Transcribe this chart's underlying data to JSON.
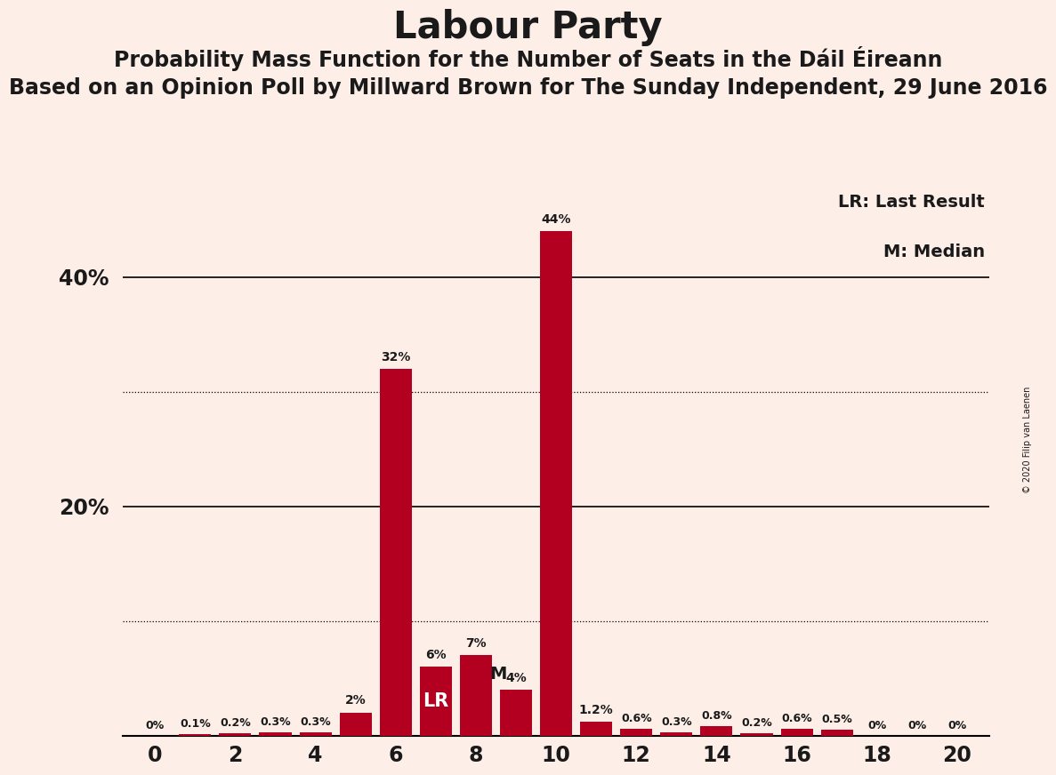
{
  "title": "Labour Party",
  "subtitle1": "Probability Mass Function for the Number of Seats in the Dáil Éireann",
  "subtitle2": "Based on an Opinion Poll by Millward Brown for The Sunday Independent, 29 June 2016",
  "copyright": "© 2020 Filip van Laenen",
  "legend1": "LR: Last Result",
  "legend2": "M: Median",
  "background_color": "#fdeee8",
  "bar_color": "#b30020",
  "seats": [
    0,
    1,
    2,
    3,
    4,
    5,
    6,
    7,
    8,
    9,
    10,
    11,
    12,
    13,
    14,
    15,
    16,
    17,
    18,
    19,
    20
  ],
  "values": [
    0.0,
    0.1,
    0.2,
    0.3,
    0.3,
    2.0,
    32.0,
    6.0,
    7.0,
    4.0,
    44.0,
    1.2,
    0.6,
    0.3,
    0.8,
    0.2,
    0.6,
    0.5,
    0.0,
    0.0,
    0.0
  ],
  "labels": [
    "0%",
    "0.1%",
    "0.2%",
    "0.3%",
    "0.3%",
    "2%",
    "32%",
    "6%",
    "7%",
    "4%",
    "44%",
    "1.2%",
    "0.6%",
    "0.3%",
    "0.8%",
    "0.2%",
    "0.6%",
    "0.5%",
    "0%",
    "0%",
    "0%"
  ],
  "lr_seat": 7,
  "median_seat": 9,
  "ylim": [
    0,
    48
  ],
  "solid_grid_lines": [
    20,
    40
  ],
  "dotted_grid_lines": [
    10,
    30
  ],
  "title_fontsize": 30,
  "subtitle1_fontsize": 17,
  "subtitle2_fontsize": 17,
  "text_color": "#1a1a1a",
  "ytick_positions": [
    20,
    40
  ],
  "ytick_labels": [
    "20%",
    "40%"
  ]
}
